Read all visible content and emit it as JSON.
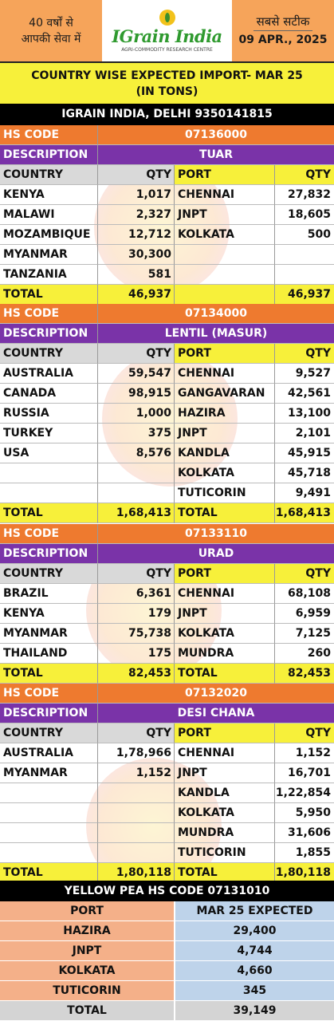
{
  "header": {
    "left_line1": "40 वर्षों से",
    "left_line2": "आपकी सेवा में",
    "brand": "IGrain India",
    "brand_sub": "AGRI-COMMODITY RESEARCH CENTRE",
    "right_line1": "सबसे सटीक",
    "right_line2": "09 APR., 2025"
  },
  "title": "COUNTRY WISE EXPECTED IMPORT- MAR 25  (IN TONS)",
  "contact": "IGRAIN INDIA, DELHI 9350141815",
  "labels": {
    "hs_code": "HS CODE",
    "description": "DESCRIPTION",
    "country": "COUNTRY",
    "qty": "QTY",
    "port": "PORT",
    "total": "TOTAL"
  },
  "sections": [
    {
      "hs_code": "07136000",
      "description": "TUAR",
      "rows": [
        [
          "KENYA",
          "1,017",
          "CHENNAI",
          "27,832"
        ],
        [
          "MALAWI",
          "2,327",
          "JNPT",
          "18,605"
        ],
        [
          "MOZAMBIQUE",
          "12,712",
          "KOLKATA",
          "500"
        ],
        [
          "MYANMAR",
          "30,300",
          "",
          ""
        ],
        [
          "TANZANIA",
          "581",
          "",
          ""
        ]
      ],
      "total_country": "46,937",
      "total_port_label": "",
      "total_port": "46,937"
    },
    {
      "hs_code": "07134000",
      "description": "LENTIL (MASUR)",
      "rows": [
        [
          "AUSTRALIA",
          "59,547",
          "CHENNAI",
          "9,527"
        ],
        [
          "CANADA",
          "98,915",
          "GANGAVARAN",
          "42,561"
        ],
        [
          "RUSSIA",
          "1,000",
          "HAZIRA",
          "13,100"
        ],
        [
          "TURKEY",
          "375",
          "JNPT",
          "2,101"
        ],
        [
          "USA",
          "8,576",
          "KANDLA",
          "45,915"
        ],
        [
          "",
          "",
          "KOLKATA",
          "45,718"
        ],
        [
          "",
          "",
          "TUTICORIN",
          "9,491"
        ]
      ],
      "total_country": "1,68,413",
      "total_port_label": "TOTAL",
      "total_port": "1,68,413"
    },
    {
      "hs_code": "07133110",
      "description": "URAD",
      "rows": [
        [
          "BRAZIL",
          "6,361",
          "CHENNAI",
          "68,108"
        ],
        [
          "KENYA",
          "179",
          "JNPT",
          "6,959"
        ],
        [
          "MYANMAR",
          "75,738",
          "KOLKATA",
          "7,125"
        ],
        [
          "THAILAND",
          "175",
          "MUNDRA",
          "260"
        ]
      ],
      "total_country": "82,453",
      "total_port_label": "TOTAL",
      "total_port": "82,453"
    },
    {
      "hs_code": "07132020",
      "description": "DESI CHANA",
      "rows": [
        [
          "AUSTRALIA",
          "1,78,966",
          "CHENNAI",
          "1,152"
        ],
        [
          "MYANMAR",
          "1,152",
          "JNPT",
          "16,701"
        ],
        [
          "",
          "",
          "KANDLA",
          "1,22,854"
        ],
        [
          "",
          "",
          "KOLKATA",
          "5,950"
        ],
        [
          "",
          "",
          "MUNDRA",
          "31,606"
        ],
        [
          "",
          "",
          "TUTICORIN",
          "1,855"
        ]
      ],
      "total_country": "1,80,118",
      "total_port_label": "TOTAL",
      "total_port": "1,80,118"
    }
  ],
  "yellow_pea": {
    "title": "YELLOW PEA HS CODE 07131010",
    "col_port": "PORT",
    "col_expected": "MAR 25 EXPECTED",
    "rows": [
      [
        "HAZIRA",
        "29,400"
      ],
      [
        "JNPT",
        "4,744"
      ],
      [
        "KOLKATA",
        "4,660"
      ],
      [
        "TUTICORIN",
        "345"
      ]
    ],
    "total_label": "TOTAL",
    "total": "39,149"
  },
  "colors": {
    "orange": "#ee7a2f",
    "purple": "#7a33a8",
    "yellow": "#f7f03a",
    "header_orange": "#f6a45a",
    "brand_green": "#2f9a2f"
  }
}
